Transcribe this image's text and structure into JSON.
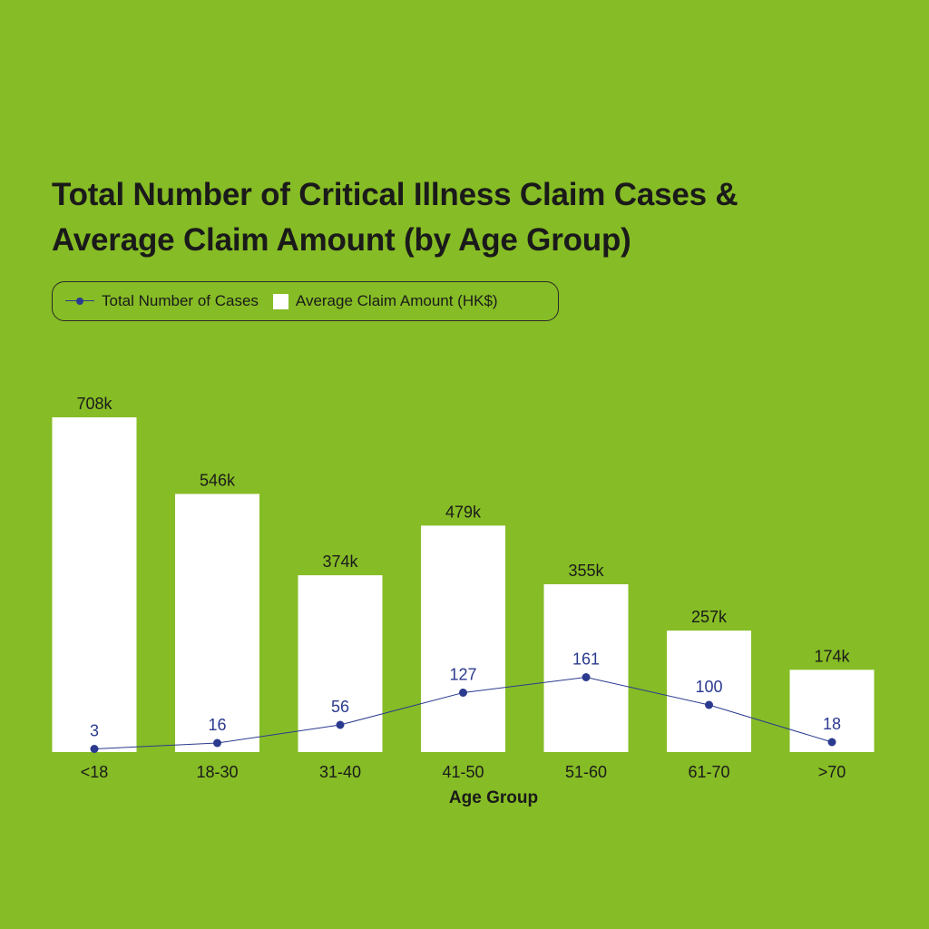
{
  "title_lines": [
    "Total Number of Critical Illness Claim Cases &",
    "Average Claim Amount (by Age Group)"
  ],
  "legend": {
    "line_label": "Total Number of Cases",
    "bar_label": "Average Claim Amount (HK$)"
  },
  "colors": {
    "background": "#86bc25",
    "bar": "#ffffff",
    "line": "#2b3a8f",
    "text": "#1a1a1a"
  },
  "chart_data": {
    "type": "bar",
    "categories": [
      "<18",
      "18-30",
      "31-40",
      "41-50",
      "51-60",
      "61-70",
      ">70"
    ],
    "xlabel": "Age Group",
    "ylabel": "",
    "series": [
      {
        "name": "Average Claim Amount (HK$)",
        "type": "bar",
        "values": [
          708000,
          546000,
          374000,
          479000,
          355000,
          257000,
          174000
        ],
        "labels": [
          "708k",
          "546k",
          "374k",
          "479k",
          "355k",
          "257k",
          "174k"
        ]
      },
      {
        "name": "Total Number of Cases",
        "type": "line",
        "values": [
          3,
          16,
          56,
          127,
          161,
          100,
          18
        ],
        "labels": [
          "3",
          "16",
          "56",
          "127",
          "161",
          "100",
          "18"
        ]
      }
    ],
    "grid": false,
    "legend_position": "top-left"
  }
}
